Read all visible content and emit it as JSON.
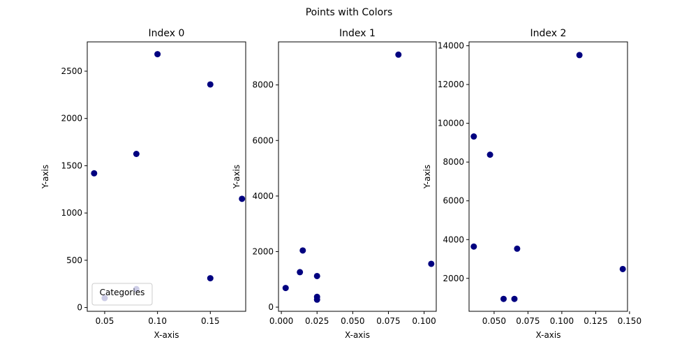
{
  "figure_title": "Points with Colors",
  "chart_data": [
    {
      "type": "scatter",
      "title": "Index 0",
      "xlabel": "X-axis",
      "ylabel": "Y-axis",
      "xlim": [
        0.0335,
        0.1835
      ],
      "ylim": [
        -40,
        2810
      ],
      "xticks": [
        0.05,
        0.1,
        0.15
      ],
      "xtick_labels": [
        "0.05",
        "0.10",
        "0.15"
      ],
      "yticks": [
        0,
        500,
        1000,
        1500,
        2000,
        2500
      ],
      "ytick_labels": [
        "0",
        "500",
        "1000",
        "1500",
        "2000",
        "2500"
      ],
      "grid": false,
      "legend": {
        "title": "Categories",
        "placement": "lower-left",
        "entries": []
      },
      "marker_color": "#000080",
      "points": [
        {
          "x": 0.04,
          "y": 1420
        },
        {
          "x": 0.05,
          "y": 100
        },
        {
          "x": 0.08,
          "y": 1625
        },
        {
          "x": 0.08,
          "y": 195
        },
        {
          "x": 0.1,
          "y": 2680
        },
        {
          "x": 0.15,
          "y": 2360
        },
        {
          "x": 0.15,
          "y": 310
        },
        {
          "x": 0.18,
          "y": 1150
        }
      ]
    },
    {
      "type": "scatter",
      "title": "Index 1",
      "xlabel": "X-axis",
      "ylabel": "Y-axis",
      "xlim": [
        -0.002,
        0.1085
      ],
      "ylim": [
        -150,
        9550
      ],
      "xticks": [
        0.0,
        0.025,
        0.05,
        0.075,
        0.1
      ],
      "xtick_labels": [
        "0.000",
        "0.025",
        "0.050",
        "0.075",
        "0.100"
      ],
      "yticks": [
        0,
        2000,
        4000,
        6000,
        8000
      ],
      "ytick_labels": [
        "0",
        "2000",
        "4000",
        "6000",
        "8000"
      ],
      "grid": false,
      "marker_color": "#000080",
      "points": [
        {
          "x": 0.003,
          "y": 690
        },
        {
          "x": 0.013,
          "y": 1260
        },
        {
          "x": 0.015,
          "y": 2040
        },
        {
          "x": 0.025,
          "y": 1120
        },
        {
          "x": 0.025,
          "y": 370
        },
        {
          "x": 0.025,
          "y": 270
        },
        {
          "x": 0.082,
          "y": 9090
        },
        {
          "x": 0.105,
          "y": 1560
        }
      ]
    },
    {
      "type": "scatter",
      "title": "Index 2",
      "xlabel": "X-axis",
      "ylabel": "Y-axis",
      "xlim": [
        0.0315,
        0.1485
      ],
      "ylim": [
        300,
        14200
      ],
      "xticks": [
        0.05,
        0.075,
        0.1,
        0.125,
        0.15
      ],
      "xtick_labels": [
        "0.050",
        "0.075",
        "0.100",
        "0.125",
        "0.150"
      ],
      "yticks": [
        2000,
        4000,
        6000,
        8000,
        10000,
        12000,
        14000
      ],
      "ytick_labels": [
        "2000",
        "4000",
        "6000",
        "8000",
        "10000",
        "12000",
        "14000"
      ],
      "grid": false,
      "marker_color": "#000080",
      "points": [
        {
          "x": 0.035,
          "y": 9320
        },
        {
          "x": 0.035,
          "y": 3640
        },
        {
          "x": 0.047,
          "y": 8380
        },
        {
          "x": 0.057,
          "y": 940
        },
        {
          "x": 0.065,
          "y": 940
        },
        {
          "x": 0.067,
          "y": 3530
        },
        {
          "x": 0.113,
          "y": 13520
        },
        {
          "x": 0.145,
          "y": 2480
        }
      ]
    }
  ]
}
